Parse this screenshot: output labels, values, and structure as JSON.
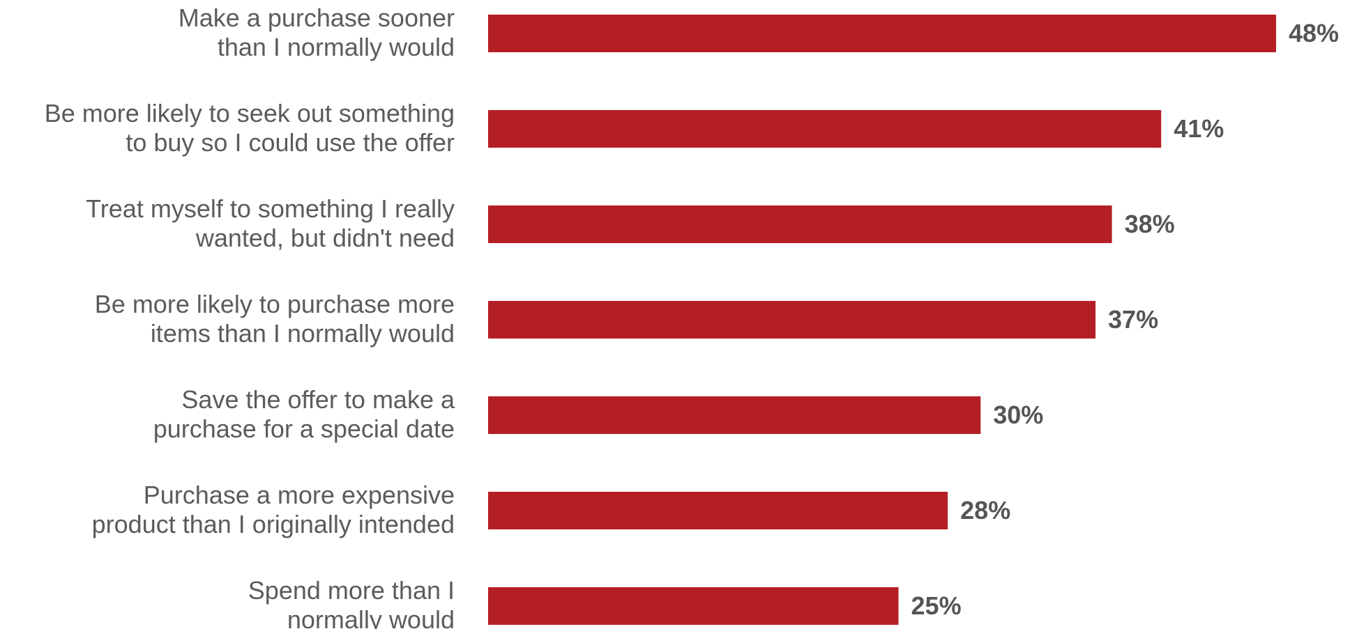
{
  "chart_data": {
    "type": "bar",
    "orientation": "horizontal",
    "categories": [
      [
        "Make a purchase sooner",
        "than I normally would"
      ],
      [
        "Be more likely to seek out something",
        "to buy so I could use the offer"
      ],
      [
        "Treat myself to something I really",
        "wanted, but didn't need"
      ],
      [
        "Be more likely to purchase more",
        "items than I normally would"
      ],
      [
        "Save the offer to make a",
        "purchase for a special date"
      ],
      [
        "Purchase a more expensive",
        "product than I originally intended"
      ],
      [
        "Spend more than I",
        "normally would"
      ]
    ],
    "values": [
      48,
      41,
      38,
      37,
      30,
      28,
      25
    ],
    "value_labels": [
      "48%",
      "41%",
      "38%",
      "37%",
      "30%",
      "28%",
      "25%"
    ],
    "unit": "%",
    "xlim": [
      0,
      48
    ],
    "grid": false,
    "legend": "none",
    "colors": {
      "bar": "#b41f25",
      "category_text": "#5b5b5b",
      "value_text": "#555555"
    }
  }
}
